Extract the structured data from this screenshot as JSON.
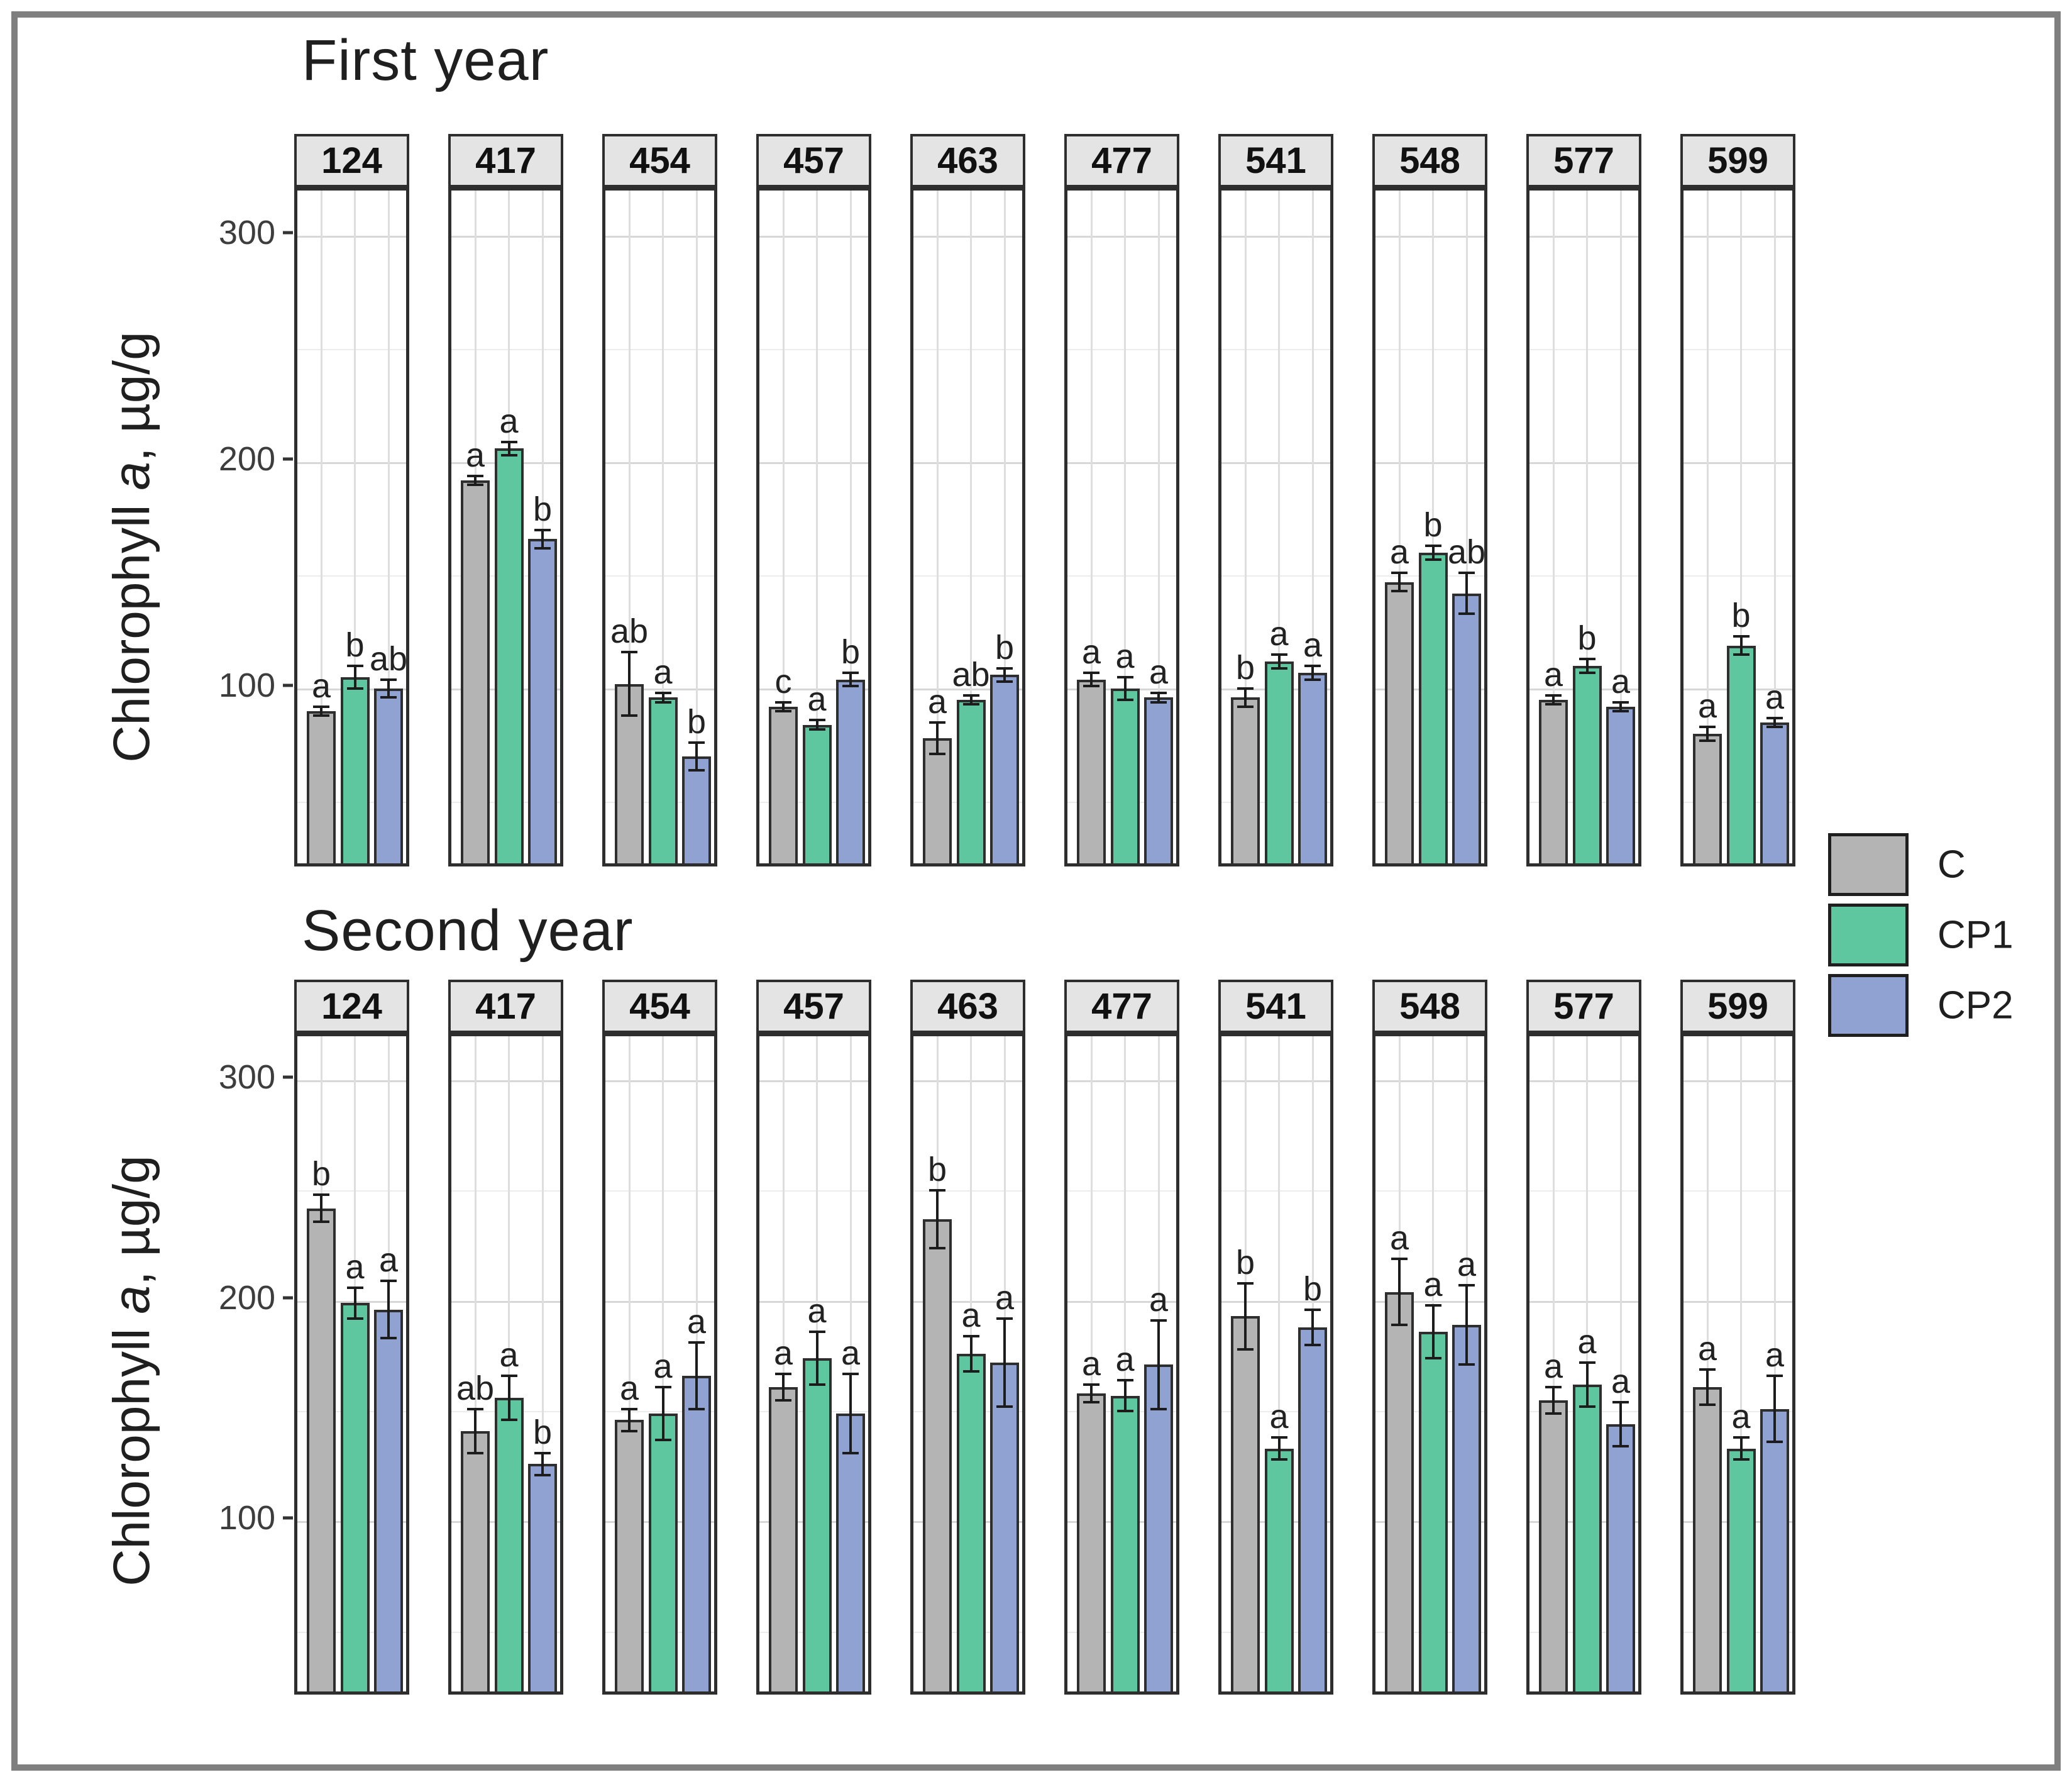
{
  "figure": {
    "ylabel": {
      "prefix": "Chlorophyll ",
      "italic": "a",
      "suffix": ", µg/g"
    },
    "legend": {
      "position": "right",
      "items": [
        {
          "label": "C",
          "color": "#b4b4b4"
        },
        {
          "label": "CP1",
          "color": "#5ec7a0"
        },
        {
          "label": "CP2",
          "color": "#8fa2d1"
        }
      ]
    },
    "colors": {
      "bar_outline": "#2e2e2e",
      "strip_bg": "#e4e4e4",
      "frame_border": "#7f7f7f"
    }
  },
  "chart_data": [
    {
      "type": "bar",
      "title": "First year",
      "ylabel": "Chlorophyll a, µg/g",
      "groups": [
        "C",
        "CP1",
        "CP2"
      ],
      "yticks": [
        100,
        200,
        300
      ],
      "ylim": [
        20,
        320
      ],
      "grid": "horizontal major (100,200,300) + minor (50,150,250), vertical per bar",
      "legend_position": "right",
      "facets": [
        {
          "id": "124",
          "values": [
            90,
            105,
            100
          ],
          "errors": [
            2,
            5,
            4
          ],
          "letters": [
            "a",
            "b",
            "ab"
          ]
        },
        {
          "id": "417",
          "values": [
            192,
            206,
            166
          ],
          "errors": [
            2,
            3,
            4
          ],
          "letters": [
            "a",
            "a",
            "b"
          ]
        },
        {
          "id": "454",
          "values": [
            102,
            96,
            70
          ],
          "errors": [
            14,
            2,
            6
          ],
          "letters": [
            "ab",
            "a",
            "b"
          ]
        },
        {
          "id": "457",
          "values": [
            92,
            84,
            104
          ],
          "errors": [
            2,
            2,
            3
          ],
          "letters": [
            "c",
            "a",
            "b"
          ]
        },
        {
          "id": "463",
          "values": [
            78,
            95,
            106
          ],
          "errors": [
            7,
            2,
            3
          ],
          "letters": [
            "a",
            "ab",
            "b"
          ]
        },
        {
          "id": "477",
          "values": [
            104,
            100,
            96
          ],
          "errors": [
            3,
            5,
            2
          ],
          "letters": [
            "a",
            "a",
            "a"
          ]
        },
        {
          "id": "541",
          "values": [
            96,
            112,
            107
          ],
          "errors": [
            4,
            3,
            3
          ],
          "letters": [
            "b",
            "a",
            "a"
          ]
        },
        {
          "id": "548",
          "values": [
            147,
            160,
            142
          ],
          "errors": [
            4,
            3,
            9
          ],
          "letters": [
            "a",
            "b",
            "ab"
          ]
        },
        {
          "id": "577",
          "values": [
            95,
            110,
            92
          ],
          "errors": [
            2,
            3,
            2
          ],
          "letters": [
            "a",
            "b",
            "a"
          ]
        },
        {
          "id": "599",
          "values": [
            80,
            119,
            85
          ],
          "errors": [
            3,
            4,
            2
          ],
          "letters": [
            "a",
            "b",
            "a"
          ]
        }
      ]
    },
    {
      "type": "bar",
      "title": "Second year",
      "ylabel": "Chlorophyll a, µg/g",
      "groups": [
        "C",
        "CP1",
        "CP2"
      ],
      "yticks": [
        100,
        200,
        300
      ],
      "ylim": [
        20,
        320
      ],
      "grid": "horizontal major (100,200,300) + minor (50,150,250), vertical per bar",
      "legend_position": "right",
      "facets": [
        {
          "id": "124",
          "values": [
            242,
            199,
            196
          ],
          "errors": [
            6,
            7,
            13
          ],
          "letters": [
            "b",
            "a",
            "a"
          ]
        },
        {
          "id": "417",
          "values": [
            141,
            156,
            126
          ],
          "errors": [
            10,
            10,
            5
          ],
          "letters": [
            "ab",
            "a",
            "b"
          ]
        },
        {
          "id": "454",
          "values": [
            146,
            149,
            166
          ],
          "errors": [
            5,
            12,
            15
          ],
          "letters": [
            "a",
            "a",
            "a"
          ]
        },
        {
          "id": "457",
          "values": [
            161,
            174,
            149
          ],
          "errors": [
            6,
            12,
            18
          ],
          "letters": [
            "a",
            "a",
            "a"
          ]
        },
        {
          "id": "463",
          "values": [
            237,
            176,
            172
          ],
          "errors": [
            13,
            8,
            20
          ],
          "letters": [
            "b",
            "a",
            "a"
          ]
        },
        {
          "id": "477",
          "values": [
            158,
            157,
            171
          ],
          "errors": [
            4,
            7,
            20
          ],
          "letters": [
            "a",
            "a",
            "a"
          ]
        },
        {
          "id": "541",
          "values": [
            193,
            133,
            188
          ],
          "errors": [
            15,
            5,
            8
          ],
          "letters": [
            "b",
            "a",
            "b"
          ]
        },
        {
          "id": "548",
          "values": [
            204,
            186,
            189
          ],
          "errors": [
            15,
            12,
            18
          ],
          "letters": [
            "a",
            "a",
            "a"
          ]
        },
        {
          "id": "577",
          "values": [
            155,
            162,
            144
          ],
          "errors": [
            6,
            10,
            10
          ],
          "letters": [
            "a",
            "a",
            "a"
          ]
        },
        {
          "id": "599",
          "values": [
            161,
            133,
            151
          ],
          "errors": [
            8,
            5,
            15
          ],
          "letters": [
            "a",
            "a",
            "a"
          ]
        }
      ]
    }
  ]
}
